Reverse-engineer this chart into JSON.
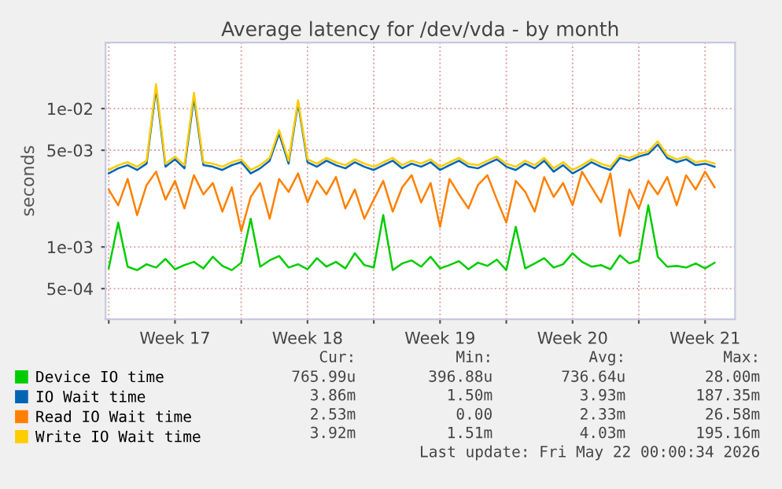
{
  "chart_data": {
    "type": "line",
    "title": "Average latency for /dev/vda - by month",
    "ylabel": "seconds",
    "log": true,
    "ylim": [
      0.0003,
      0.03
    ],
    "yticks": [
      {
        "value": 0.0005,
        "label": "5e-04"
      },
      {
        "value": 0.001,
        "label": "1e-03"
      },
      {
        "value": 0.005,
        "label": "5e-03"
      },
      {
        "value": 0.01,
        "label": "1e-02"
      }
    ],
    "xlim": [
      "2026-04-19T20:00",
      "2026-05-23T02:00"
    ],
    "xticks": [
      {
        "value": "2026-04-20",
        "label": null
      },
      {
        "value": "2026-04-23T12:00",
        "label": "Week 17"
      },
      {
        "value": "2026-04-27",
        "label": null
      },
      {
        "value": "2026-04-30T12:00",
        "label": "Week 18"
      },
      {
        "value": "2026-05-04",
        "label": null
      },
      {
        "value": "2026-05-07T12:00",
        "label": "Week 19"
      },
      {
        "value": "2026-05-11",
        "label": null
      },
      {
        "value": "2026-05-14T12:00",
        "label": "Week 20"
      },
      {
        "value": "2026-05-18",
        "label": null
      },
      {
        "value": "2026-05-21T12:00",
        "label": "Week 21"
      }
    ],
    "grid": true,
    "legend": "bottom",
    "line_style": "solid",
    "marker": "none",
    "x": [
      "2026-04-20T00:00",
      "2026-04-20T12:00",
      "2026-04-21T00:00",
      "2026-04-21T12:00",
      "2026-04-22T00:00",
      "2026-04-22T12:00",
      "2026-04-23T00:00",
      "2026-04-23T12:00",
      "2026-04-24T00:00",
      "2026-04-24T12:00",
      "2026-04-25T00:00",
      "2026-04-25T12:00",
      "2026-04-26T00:00",
      "2026-04-26T12:00",
      "2026-04-27T00:00",
      "2026-04-27T12:00",
      "2026-04-28T00:00",
      "2026-04-28T12:00",
      "2026-04-29T00:00",
      "2026-04-29T12:00",
      "2026-04-30T00:00",
      "2026-04-30T12:00",
      "2026-05-01T00:00",
      "2026-05-01T12:00",
      "2026-05-02T00:00",
      "2026-05-02T12:00",
      "2026-05-03T00:00",
      "2026-05-03T12:00",
      "2026-05-04T00:00",
      "2026-05-04T12:00",
      "2026-05-05T00:00",
      "2026-05-05T12:00",
      "2026-05-06T00:00",
      "2026-05-06T12:00",
      "2026-05-07T00:00",
      "2026-05-07T12:00",
      "2026-05-08T00:00",
      "2026-05-08T12:00",
      "2026-05-09T00:00",
      "2026-05-09T12:00",
      "2026-05-10T00:00",
      "2026-05-10T12:00",
      "2026-05-11T00:00",
      "2026-05-11T12:00",
      "2026-05-12T00:00",
      "2026-05-12T12:00",
      "2026-05-13T00:00",
      "2026-05-13T12:00",
      "2026-05-14T00:00",
      "2026-05-14T12:00",
      "2026-05-15T00:00",
      "2026-05-15T12:00",
      "2026-05-16T00:00",
      "2026-05-16T12:00",
      "2026-05-17T00:00",
      "2026-05-17T12:00",
      "2026-05-18T00:00",
      "2026-05-18T12:00",
      "2026-05-19T00:00",
      "2026-05-19T12:00",
      "2026-05-20T00:00",
      "2026-05-20T12:00",
      "2026-05-21T00:00",
      "2026-05-21T12:00",
      "2026-05-22T00:00"
    ],
    "series": [
      {
        "name": "Device IO time",
        "color": "#00cc00",
        "values": [
          0.0007,
          0.0015,
          0.00072,
          0.00068,
          0.00075,
          0.00071,
          0.00082,
          0.00069,
          0.00074,
          0.00078,
          0.0007,
          0.00085,
          0.00073,
          0.00068,
          0.00077,
          0.0016,
          0.00072,
          0.0008,
          0.00086,
          0.00071,
          0.00075,
          0.00069,
          0.00083,
          0.00072,
          0.00078,
          0.0007,
          0.0009,
          0.00074,
          0.00071,
          0.0017,
          0.00068,
          0.00076,
          0.0008,
          0.00072,
          0.00085,
          0.0007,
          0.00074,
          0.00079,
          0.00069,
          0.00077,
          0.00073,
          0.00081,
          0.00068,
          0.0014,
          0.0007,
          0.00076,
          0.00083,
          0.00071,
          0.00075,
          0.0009,
          0.00078,
          0.00072,
          0.00074,
          0.00069,
          0.00087,
          0.00076,
          0.0008,
          0.002,
          0.00085,
          0.00072,
          0.00073,
          0.00071,
          0.00076,
          0.0007,
          0.00077
        ]
      },
      {
        "name": "IO Wait time",
        "color": "#0066b3",
        "values": [
          0.0034,
          0.0037,
          0.0039,
          0.0036,
          0.004,
          0.014,
          0.0038,
          0.0043,
          0.0037,
          0.012,
          0.0039,
          0.0038,
          0.0036,
          0.0039,
          0.0041,
          0.0034,
          0.0037,
          0.0042,
          0.0066,
          0.004,
          0.011,
          0.0041,
          0.0038,
          0.0042,
          0.0039,
          0.0037,
          0.0041,
          0.0038,
          0.0036,
          0.0039,
          0.0042,
          0.0037,
          0.004,
          0.0038,
          0.0041,
          0.0036,
          0.0039,
          0.0042,
          0.0038,
          0.0037,
          0.004,
          0.0043,
          0.0038,
          0.0036,
          0.004,
          0.0037,
          0.0042,
          0.0035,
          0.0039,
          0.0034,
          0.0037,
          0.0041,
          0.0038,
          0.0036,
          0.0044,
          0.0042,
          0.0045,
          0.0047,
          0.0055,
          0.0044,
          0.0041,
          0.0043,
          0.0039,
          0.004,
          0.0038
        ]
      },
      {
        "name": "Read IO Wait time",
        "color": "#ff8000",
        "values": [
          0.0026,
          0.002,
          0.0031,
          0.0017,
          0.0028,
          0.0035,
          0.0022,
          0.003,
          0.0019,
          0.0033,
          0.0024,
          0.0029,
          0.0018,
          0.0027,
          0.0013,
          0.0023,
          0.0029,
          0.0016,
          0.0031,
          0.0025,
          0.0034,
          0.0021,
          0.003,
          0.0024,
          0.0032,
          0.0019,
          0.0026,
          0.0016,
          0.0022,
          0.003,
          0.0018,
          0.0027,
          0.0033,
          0.0021,
          0.0029,
          0.0014,
          0.0031,
          0.0024,
          0.0019,
          0.0028,
          0.0033,
          0.0022,
          0.0015,
          0.003,
          0.0025,
          0.0018,
          0.0032,
          0.0023,
          0.0029,
          0.002,
          0.0035,
          0.0027,
          0.0021,
          0.0034,
          0.0012,
          0.0026,
          0.0019,
          0.003,
          0.0024,
          0.0032,
          0.002,
          0.0033,
          0.0026,
          0.0035,
          0.0027
        ]
      },
      {
        "name": "Write IO Wait time",
        "color": "#ffcc00",
        "values": [
          0.0036,
          0.0039,
          0.0041,
          0.0038,
          0.0042,
          0.015,
          0.004,
          0.0045,
          0.0039,
          0.013,
          0.0041,
          0.004,
          0.0038,
          0.0041,
          0.0043,
          0.0036,
          0.0039,
          0.0044,
          0.007,
          0.0042,
          0.0115,
          0.0043,
          0.004,
          0.0044,
          0.0041,
          0.0039,
          0.0043,
          0.004,
          0.0038,
          0.0041,
          0.0044,
          0.0039,
          0.0042,
          0.004,
          0.0043,
          0.0038,
          0.0041,
          0.0044,
          0.004,
          0.0039,
          0.0042,
          0.0045,
          0.004,
          0.0038,
          0.0042,
          0.0039,
          0.0044,
          0.0037,
          0.0041,
          0.0036,
          0.0039,
          0.0043,
          0.004,
          0.0038,
          0.0046,
          0.0044,
          0.0047,
          0.0049,
          0.0058,
          0.0046,
          0.0043,
          0.0045,
          0.0041,
          0.0042,
          0.004
        ]
      }
    ],
    "annotations": [
      "Cur:",
      "Min:",
      "Avg:",
      "Max:",
      "765.99u",
      "396.88u",
      "736.64u",
      "28.00m",
      "3.86m",
      "1.50m",
      "3.93m",
      "187.35m",
      "2.53m",
      "0.00",
      "2.33m",
      "26.58m",
      "3.92m",
      "1.51m",
      "4.03m",
      "195.16m",
      "Last update: Fri May 22 00:00:34 2026"
    ]
  }
}
